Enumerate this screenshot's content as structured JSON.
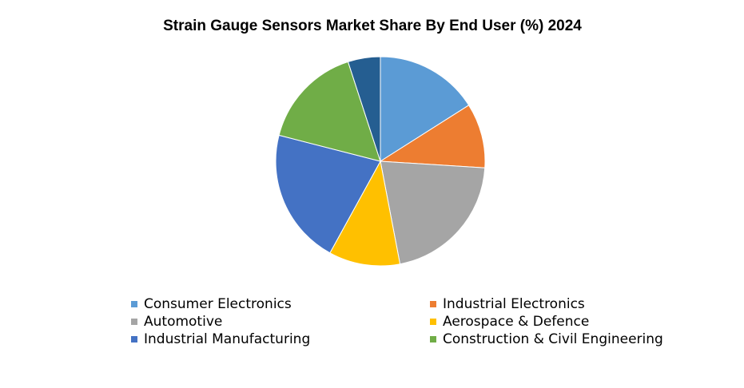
{
  "chart_data": {
    "type": "pie",
    "title": "Strain Gauge Sensors Market Share By End User  (%) 2024",
    "categories": [
      "Consumer Electronics",
      "Industrial Electronics",
      "Automotive",
      "Aerospace & Defence",
      "Industrial Manufacturing",
      "Construction & Civil Engineering",
      null
    ],
    "values": [
      16,
      10,
      21,
      11,
      21,
      16,
      5
    ],
    "colors": [
      "#5b9bd5",
      "#ed7d31",
      "#a5a5a5",
      "#ffc000",
      "#4472c4",
      "#70ad47",
      "#255e91"
    ]
  }
}
